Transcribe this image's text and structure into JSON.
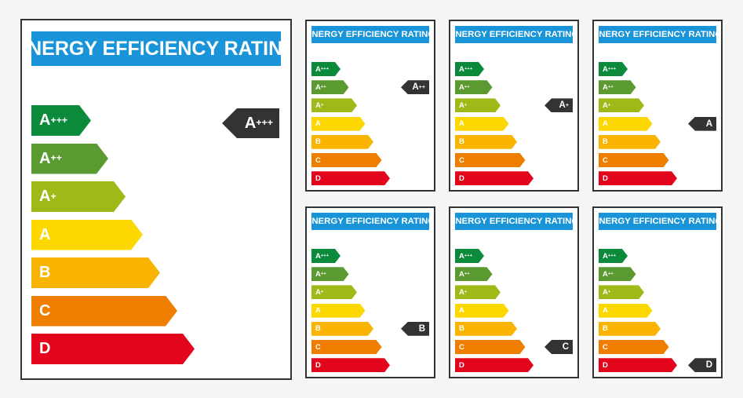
{
  "title": "ENERGY EFFICIENCY RATING",
  "classes": [
    {
      "letter": "A",
      "plus": "+++",
      "color": "#0a8a3a"
    },
    {
      "letter": "A",
      "plus": "++",
      "color": "#5a9a30"
    },
    {
      "letter": "A",
      "plus": "+",
      "color": "#9fb918"
    },
    {
      "letter": "A",
      "plus": "",
      "color": "#fcd800"
    },
    {
      "letter": "B",
      "plus": "",
      "color": "#f8b400"
    },
    {
      "letter": "C",
      "plus": "",
      "color": "#ee7d00"
    },
    {
      "letter": "D",
      "plus": "",
      "color": "#e3051b"
    }
  ],
  "labels": [
    {
      "rating": {
        "letter": "A",
        "plus": "+++"
      },
      "rating_index": 0
    },
    {
      "rating": {
        "letter": "A",
        "plus": "++"
      },
      "rating_index": 1
    },
    {
      "rating": {
        "letter": "A",
        "plus": "+"
      },
      "rating_index": 2
    },
    {
      "rating": {
        "letter": "A",
        "plus": ""
      },
      "rating_index": 3
    },
    {
      "rating": {
        "letter": "B",
        "plus": ""
      },
      "rating_index": 4
    },
    {
      "rating": {
        "letter": "C",
        "plus": ""
      },
      "rating_index": 5
    },
    {
      "rating": {
        "letter": "D",
        "plus": ""
      },
      "rating_index": 6
    }
  ]
}
